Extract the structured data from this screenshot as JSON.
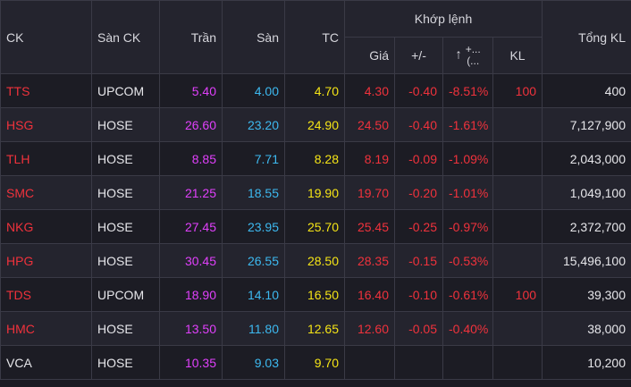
{
  "colors": {
    "ceiling": "#e040fb",
    "floor": "#3db9f0",
    "ref": "#f5e416",
    "down": "#f0323c",
    "neutral": "#e6e6ea"
  },
  "headers": {
    "ck": "CK",
    "exchange": "Sàn CK",
    "ceiling": "Trần",
    "floor": "Sàn",
    "ref": "TC",
    "match": "Khớp lệnh",
    "price": "Giá",
    "change": "+/-",
    "pct_icon": "arrow-up-icon",
    "pct_top": "+...",
    "pct_bottom": "(...",
    "kl": "KL",
    "total": "Tổng KL"
  },
  "rows": [
    {
      "symbol": "TTS",
      "symbol_color": "down",
      "exchange": "UPCOM",
      "ceiling": "5.40",
      "floor": "4.00",
      "ref": "4.70",
      "price": "4.30",
      "change": "-0.40",
      "pct": "-8.51%",
      "kl": "100",
      "total": "400"
    },
    {
      "symbol": "HSG",
      "symbol_color": "down",
      "exchange": "HOSE",
      "ceiling": "26.60",
      "floor": "23.20",
      "ref": "24.90",
      "price": "24.50",
      "change": "-0.40",
      "pct": "-1.61%",
      "kl": "",
      "total": "7,127,900"
    },
    {
      "symbol": "TLH",
      "symbol_color": "down",
      "exchange": "HOSE",
      "ceiling": "8.85",
      "floor": "7.71",
      "ref": "8.28",
      "price": "8.19",
      "change": "-0.09",
      "pct": "-1.09%",
      "kl": "",
      "total": "2,043,000"
    },
    {
      "symbol": "SMC",
      "symbol_color": "down",
      "exchange": "HOSE",
      "ceiling": "21.25",
      "floor": "18.55",
      "ref": "19.90",
      "price": "19.70",
      "change": "-0.20",
      "pct": "-1.01%",
      "kl": "",
      "total": "1,049,100"
    },
    {
      "symbol": "NKG",
      "symbol_color": "down",
      "exchange": "HOSE",
      "ceiling": "27.45",
      "floor": "23.95",
      "ref": "25.70",
      "price": "25.45",
      "change": "-0.25",
      "pct": "-0.97%",
      "kl": "",
      "total": "2,372,700"
    },
    {
      "symbol": "HPG",
      "symbol_color": "down",
      "exchange": "HOSE",
      "ceiling": "30.45",
      "floor": "26.55",
      "ref": "28.50",
      "price": "28.35",
      "change": "-0.15",
      "pct": "-0.53%",
      "kl": "",
      "total": "15,496,100"
    },
    {
      "symbol": "TDS",
      "symbol_color": "down",
      "exchange": "UPCOM",
      "ceiling": "18.90",
      "floor": "14.10",
      "ref": "16.50",
      "price": "16.40",
      "change": "-0.10",
      "pct": "-0.61%",
      "kl": "100",
      "total": "39,300"
    },
    {
      "symbol": "HMC",
      "symbol_color": "down",
      "exchange": "HOSE",
      "ceiling": "13.50",
      "floor": "11.80",
      "ref": "12.65",
      "price": "12.60",
      "change": "-0.05",
      "pct": "-0.40%",
      "kl": "",
      "total": "38,000"
    },
    {
      "symbol": "VCA",
      "symbol_color": "neutral",
      "exchange": "HOSE",
      "ceiling": "10.35",
      "floor": "9.03",
      "ref": "9.70",
      "price": "",
      "change": "",
      "pct": "",
      "kl": "",
      "total": "10,200"
    }
  ]
}
